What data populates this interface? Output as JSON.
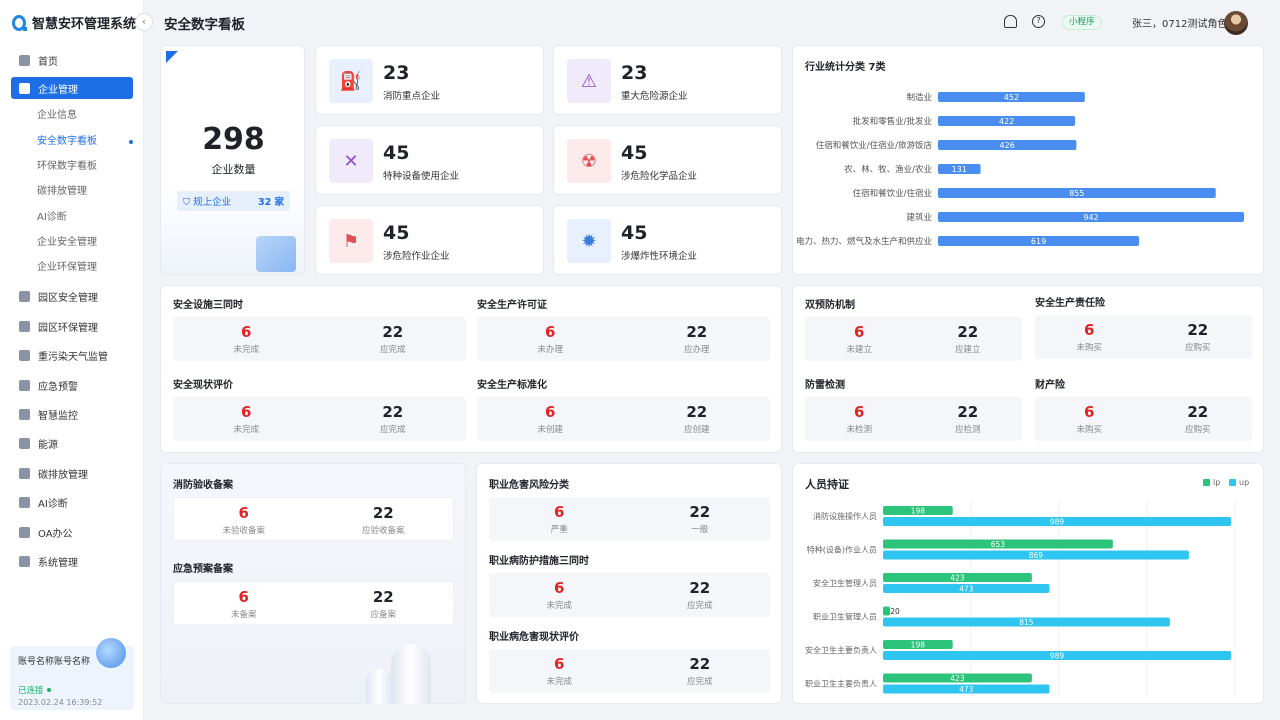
{
  "app": {
    "title": "智慧安环管理系统"
  },
  "sidebar": {
    "items": [
      {
        "label": "首页"
      },
      {
        "label": "企业管理"
      },
      {
        "label": "园区安全管理"
      },
      {
        "label": "园区环保管理"
      },
      {
        "label": "重污染天气监管"
      },
      {
        "label": "应急预警"
      },
      {
        "label": "智慧监控"
      },
      {
        "label": "能源"
      },
      {
        "label": "碳排放管理"
      },
      {
        "label": "AI诊断"
      },
      {
        "label": "OA办公"
      },
      {
        "label": "系统管理"
      }
    ],
    "sub": [
      "企业信息",
      "安全数字看板",
      "环保数字看板",
      "碳排放管理",
      "AI诊断",
      "企业安全管理",
      "企业环保管理"
    ],
    "account": {
      "name": "账号名称账号名称",
      "status": "已连接",
      "time": "2023.02.24 16:39:52"
    }
  },
  "header": {
    "title": "安全数字看板",
    "mini": "小程序",
    "user": "张三，0712测试角色",
    "question": "?"
  },
  "summary": {
    "total": "298",
    "total_label": "企业数量",
    "badge_label": "规上企业",
    "badge_value": "32 家"
  },
  "tiles": [
    {
      "value": "23",
      "label": "消防重点企业",
      "color": "#e8f0fd",
      "icon": "fire-hydrant-icon"
    },
    {
      "value": "23",
      "label": "重大危险源企业",
      "color": "#f1eafb",
      "icon": "warning-icon"
    },
    {
      "value": "45",
      "label": "特种设备使用企业",
      "color": "#f1eafb",
      "icon": "tools-icon"
    },
    {
      "value": "45",
      "label": "涉危险化学品企业",
      "color": "#fdeaea",
      "icon": "radiation-icon"
    },
    {
      "value": "45",
      "label": "涉危险作业企业",
      "color": "#fdeaea",
      "icon": "alarm-icon"
    },
    {
      "value": "45",
      "label": "涉爆炸性环境企业",
      "color": "#e8f0fd",
      "icon": "explosion-icon"
    }
  ],
  "industry": {
    "title": "行业统计分类 7类"
  },
  "chart_data": [
    {
      "type": "bar",
      "orientation": "horizontal",
      "title": "行业统计分类 7类",
      "categories": [
        "制造业",
        "批发和零售业/批发业",
        "住宿和餐饮业/住宿业/旅游饭店",
        "农、林、牧、渔业/农业",
        "住宿和餐饮业/住宿业",
        "建筑业",
        "电力、热力、燃气及水生产和供应业"
      ],
      "values": [
        452,
        422,
        426,
        131,
        855,
        942,
        619
      ],
      "xlim": [
        0,
        942
      ]
    },
    {
      "type": "bar",
      "orientation": "horizontal",
      "title": "人员持证",
      "categories": [
        "消防设施操作人员",
        "特种(设备)作业人员",
        "安全卫生管理人员",
        "职业卫生管理人员",
        "安全卫生主要负责人",
        "职业卫生主要负责人"
      ],
      "series": [
        {
          "name": "lp",
          "values": [
            198,
            653,
            423,
            20,
            198,
            423
          ],
          "color": "#2cc37a"
        },
        {
          "name": "up",
          "values": [
            989,
            869,
            473,
            815,
            989,
            473
          ],
          "color": "#2ec5f0"
        }
      ],
      "xlim": [
        0,
        1000
      ],
      "legend": "top-right"
    }
  ],
  "safety": [
    {
      "title": "安全设施三同时",
      "a": "6",
      "al": "未完成",
      "b": "22",
      "bl": "应完成"
    },
    {
      "title": "安全生产许可证",
      "a": "6",
      "al": "未办理",
      "b": "22",
      "bl": "应办理"
    },
    {
      "title": "安全现状评价",
      "a": "6",
      "al": "未完成",
      "b": "22",
      "bl": "应完成"
    },
    {
      "title": "安全生产标准化",
      "a": "6",
      "al": "未创建",
      "b": "22",
      "bl": "应创建"
    }
  ],
  "prevent": [
    {
      "title": "双预防机制",
      "a": "6",
      "al": "未建立",
      "b": "22",
      "bl": "应建立"
    },
    {
      "title": "安全生产责任险",
      "a": "6",
      "al": "未购买",
      "b": "22",
      "bl": "应购买"
    },
    {
      "title": "防雷检测",
      "a": "6",
      "al": "未检测",
      "b": "22",
      "bl": "应检测"
    },
    {
      "title": "财产险",
      "a": "6",
      "al": "未购买",
      "b": "22",
      "bl": "应购买"
    }
  ],
  "fire": [
    {
      "title": "消防验收备案",
      "a": "6",
      "al": "未验收备案",
      "b": "22",
      "bl": "应验收备案"
    },
    {
      "title": "应急预案备案",
      "a": "6",
      "al": "未备案",
      "b": "22",
      "bl": "应备案"
    }
  ],
  "occupation": [
    {
      "title": "职业危害风险分类",
      "a": "6",
      "al": "严重",
      "b": "22",
      "bl": "一般"
    },
    {
      "title": "职业病防护措施三同时",
      "a": "6",
      "al": "未完成",
      "b": "22",
      "bl": "应完成"
    },
    {
      "title": "职业病危害现状评价",
      "a": "6",
      "al": "未完成",
      "b": "22",
      "bl": "应完成"
    }
  ],
  "personnel": {
    "title": "人员持证",
    "lp": "lp",
    "up": "up"
  }
}
